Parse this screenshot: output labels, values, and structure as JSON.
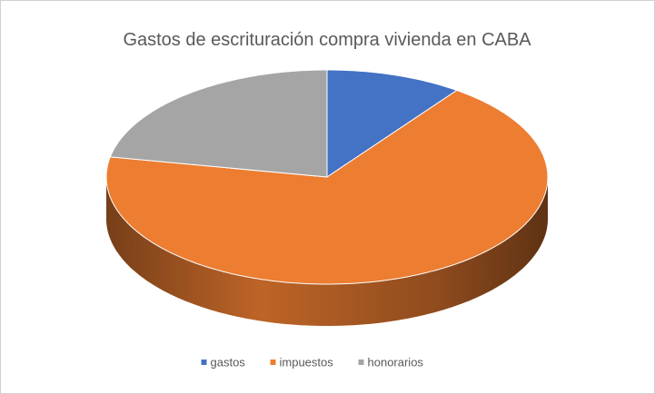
{
  "chart_data": {
    "type": "pie",
    "title": "Gastos de escrituración compra vivienda en CABA",
    "categories": [
      "gastos",
      "impuestos",
      "honorarios"
    ],
    "values": [
      10,
      68,
      22
    ],
    "colors": [
      "#4472c4",
      "#ed7d31",
      "#a5a5a5"
    ],
    "legend": "bottom"
  }
}
